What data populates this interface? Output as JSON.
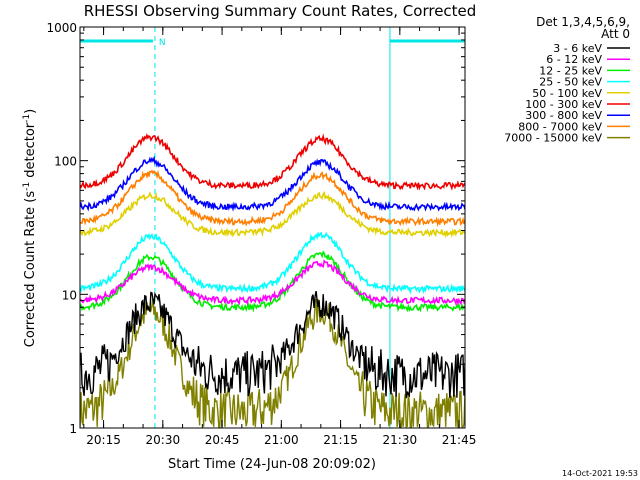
{
  "colors": {
    "background": "#ffffff",
    "axis": "#000000",
    "marker": "#00e5e5"
  },
  "chart_data": {
    "type": "line",
    "title": "RHESSI Observing Summary Count Rates, Corrected",
    "xlabel": "Start Time (24-Jun-08 20:09:02)",
    "ylabel": "Corrected Count Rate (s⁻¹ detector⁻¹)",
    "y_scale": "log",
    "ylim": [
      1,
      1000
    ],
    "xlim": [
      "20:09:02",
      "21:46:30"
    ],
    "x_tick_labels": [
      "20:15",
      "20:30",
      "20:45",
      "21:00",
      "21:15",
      "21:30",
      "21:45"
    ],
    "y_tick_labels": [
      "1",
      "10",
      "100",
      "1000"
    ],
    "legend_header": [
      "Det 1,3,4,5,6,9,",
      "Att 0"
    ],
    "legend_position": "right",
    "series": [
      {
        "name": "3 - 6 keV",
        "color": "#000000",
        "values": {
          "night": 2.5,
          "peak1": 8.5,
          "peak2": 8.5
        }
      },
      {
        "name": "6 - 12 keV",
        "color": "#ff00ff",
        "values": {
          "night": 9,
          "peak1": 16,
          "peak2": 17
        }
      },
      {
        "name": "12 - 25 keV",
        "color": "#00ee00",
        "values": {
          "night": 8,
          "peak1": 19,
          "peak2": 20
        }
      },
      {
        "name": "25 - 50 keV",
        "color": "#00ffff",
        "values": {
          "night": 11,
          "peak1": 27,
          "peak2": 28
        }
      },
      {
        "name": "50 - 100 keV",
        "color": "#e0d000",
        "values": {
          "night": 29,
          "peak1": 55,
          "peak2": 55
        }
      },
      {
        "name": "100 - 300 keV",
        "color": "#ee0000",
        "values": {
          "night": 65,
          "peak1": 150,
          "peak2": 145
        }
      },
      {
        "name": "300 - 800 keV",
        "color": "#0000ff",
        "values": {
          "night": 45,
          "peak1": 100,
          "peak2": 97
        }
      },
      {
        "name": "800 - 7000 keV",
        "color": "#ff7f00",
        "values": {
          "night": 35,
          "peak1": 80,
          "peak2": 78
        }
      },
      {
        "name": "7000 - 15000 keV",
        "color": "#808000",
        "values": {
          "night": 1.3,
          "peak1": 7.5,
          "peak2": 7.5
        }
      }
    ],
    "flags": [
      {
        "label": "",
        "start": "20:09:02",
        "end": "20:27:30"
      },
      {
        "label": "N",
        "start": "20:28:00",
        "end": "20:28:00"
      },
      {
        "label": "",
        "start": "21:27:30",
        "end": "21:46:30"
      }
    ],
    "footer_date": "14-Oct-2021 19:53"
  }
}
